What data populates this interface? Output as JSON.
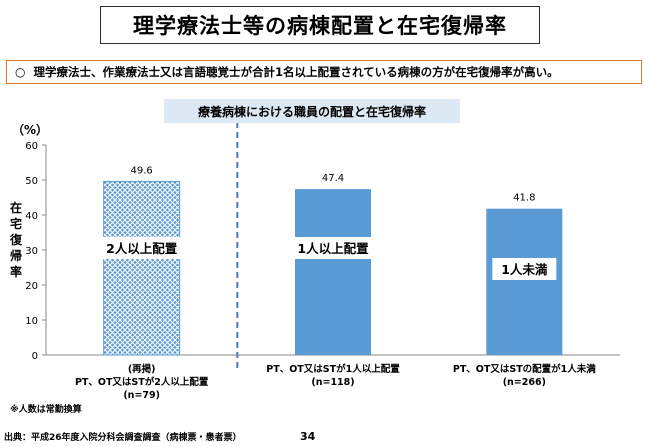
{
  "header": {
    "title": "理学療法士等の病棟配置と在宅復帰率",
    "summary": "理学療法士、作業療法士又は言語聴覚士が合計1名以上配置されている病棟の方が在宅復帰率が高い。"
  },
  "footer": {
    "note": "※人数は常勤換算",
    "source": "出典：平成26年度入院分科会調査調査（病棟票・患者票）",
    "page_number": "34"
  },
  "colors": {
    "bar": "#5b9bd5",
    "summary_border": "#e07a2a",
    "subtitle_bg": "#dce8f3",
    "divider": "#4a7fb5"
  },
  "chart_data": {
    "type": "bar",
    "title": "療養病棟における職員の配置と在宅復帰率",
    "unit_label": "（%）",
    "ylabel": "在宅復帰率",
    "ylim": [
      0,
      60
    ],
    "yticks": [
      0,
      10,
      20,
      30,
      40,
      50,
      60
    ],
    "grid": false,
    "categories": [
      [
        "(再掲)",
        "PT、OT又はSTが2人以上配置",
        "(n=79)"
      ],
      [
        "PT、OT又はSTが1人以上配置",
        "(n=118)"
      ],
      [
        "PT、OT又はSTの配置が1人未満",
        "(n=266)"
      ]
    ],
    "values": [
      49.6,
      47.4,
      41.8
    ],
    "value_labels": [
      "49.6",
      "47.4",
      "41.8"
    ],
    "bar_labels": [
      "2人以上配置",
      "1人以上配置",
      "1人未満"
    ],
    "bar_styles": [
      "hatched",
      "solid",
      "solid"
    ]
  }
}
